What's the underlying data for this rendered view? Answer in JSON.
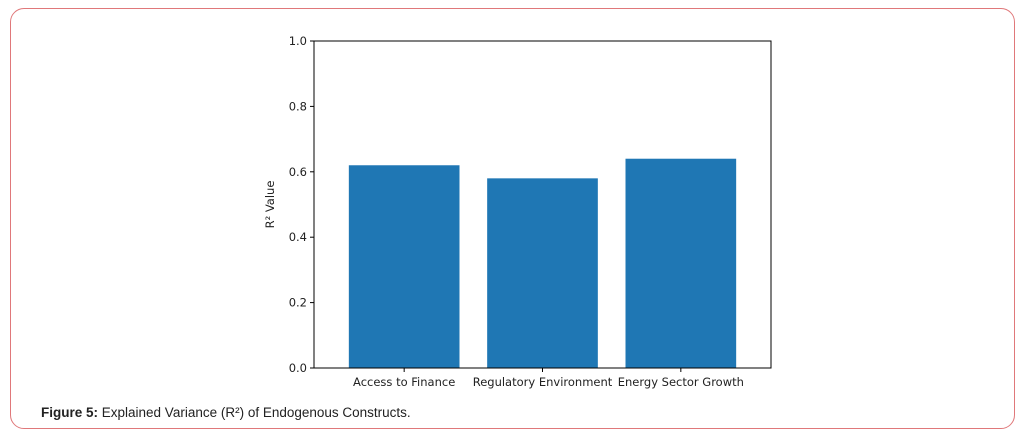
{
  "chart_data": {
    "type": "bar",
    "categories": [
      "Access to Finance",
      "Regulatory Environment",
      "Energy Sector Growth"
    ],
    "values": [
      0.62,
      0.58,
      0.64
    ],
    "title": "",
    "xlabel": "",
    "ylabel": "R² Value",
    "ylim": [
      0,
      1.0
    ],
    "yticks": [
      "0.0",
      "0.2",
      "0.4",
      "0.6",
      "0.8",
      "1.0"
    ],
    "bar_color": "#1f77b4",
    "grid": false
  },
  "caption": {
    "label": "Figure 5:",
    "text": " Explained Variance (R²) of Endogenous Constructs."
  },
  "colors": {
    "frame_border": "#e0787a"
  }
}
